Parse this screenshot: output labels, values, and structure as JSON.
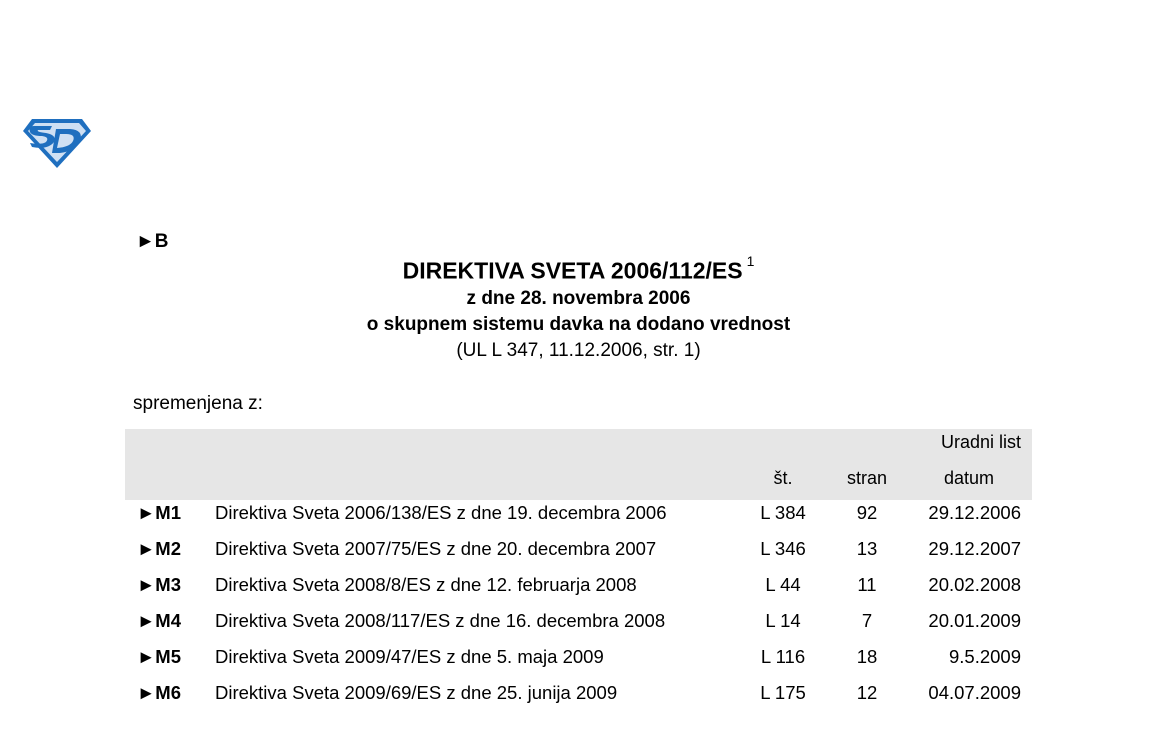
{
  "logo_name": "SD",
  "marker": "►B",
  "title": "DIREKTIVA SVETA 2006/112/ES",
  "title_footnote": "1",
  "subtitle_date": "z dne 28. novembra 2006",
  "subtitle_subject": "o skupnem sistemu davka na dodano vrednost",
  "reference": "(UL L 347, 11.12.2006, str. 1)",
  "amended_label": "spremenjena z:",
  "table": {
    "group_header": "Uradni list",
    "headers": {
      "number": "št.",
      "page": "stran",
      "date": "datum"
    },
    "rows": [
      {
        "marker": "►M1",
        "description": "Direktiva Sveta 2006/138/ES z dne 19. decembra 2006",
        "number": "L 384",
        "page": "92",
        "date": "29.12.2006"
      },
      {
        "marker": "►M2",
        "description": "Direktiva Sveta 2007/75/ES z dne 20. decembra 2007",
        "number": "L 346",
        "page": "13",
        "date": "29.12.2007"
      },
      {
        "marker": "►M3",
        "description": "Direktiva Sveta 2008/8/ES z dne 12. februarja 2008",
        "number": "L 44",
        "page": "11",
        "date": "20.02.2008"
      },
      {
        "marker": "►M4",
        "description": "Direktiva Sveta 2008/117/ES z dne 16. decembra 2008",
        "number": "L 14",
        "page": "7",
        "date": "20.01.2009"
      },
      {
        "marker": "►M5",
        "description": "Direktiva Sveta 2009/47/ES z dne 5. maja 2009",
        "number": "L 116",
        "page": "18",
        "date": "9.5.2009"
      },
      {
        "marker": "►M6",
        "description": "Direktiva Sveta 2009/69/ES z dne 25. junija 2009",
        "number": "L 175",
        "page": "12",
        "date": "04.07.2009"
      }
    ]
  }
}
